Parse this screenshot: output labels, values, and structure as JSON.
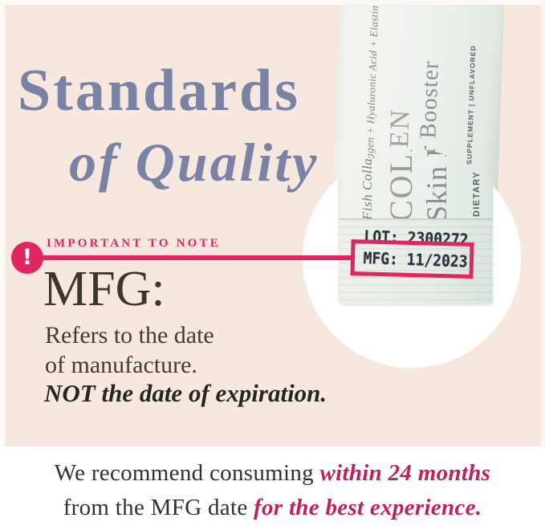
{
  "colors": {
    "peach_bg": "#f6e8df",
    "title_blue": "#7b83a5",
    "accent_pink": "#e02561",
    "deep_pink": "#c21f5c",
    "stamp_navy": "#2a3240"
  },
  "title": {
    "line1": "Standards",
    "line2": "of Quality"
  },
  "note": {
    "label": "IMPORTANT TO NOTE",
    "heading": "MFG:",
    "desc_line1": "Refers to the date",
    "desc_line2": "of manufacture.",
    "emphasis": "NOT the date of expiration."
  },
  "package": {
    "ingredients": "Fish Collagen + Hyaluronic Acid + Elastin Peptides",
    "name": "COLLAGEN",
    "subname": "Skin Barrier Booster",
    "meta": "DIETARY SUPPLEMENT | UNFLAVORED",
    "stamp_lot": "LOT: 2300272",
    "stamp_mfg": "MFG: 11/2023"
  },
  "icons": {
    "alert": "!"
  },
  "footer": {
    "line1_normal": "We recommend consuming ",
    "line1_highlight": "within 24 months",
    "line2_normal": "from the MFG date ",
    "line2_highlight": "for the best experience."
  }
}
